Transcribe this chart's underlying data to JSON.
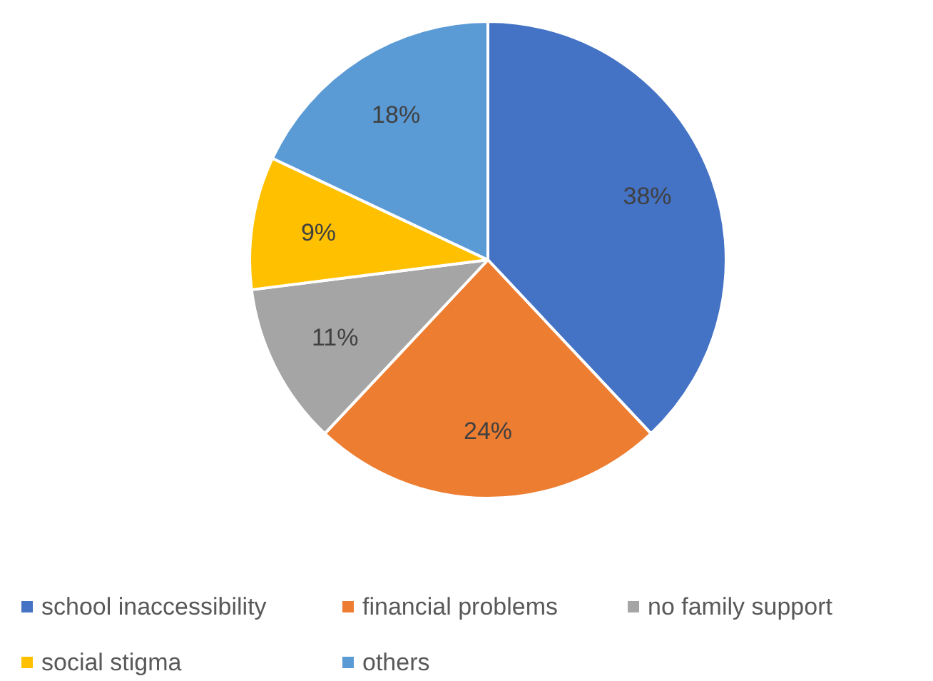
{
  "chart_data": {
    "type": "pie",
    "categories": [
      "school inaccessibility",
      "financial problems",
      "no family support",
      "social stigma",
      "others"
    ],
    "values": [
      38,
      24,
      11,
      9,
      18
    ],
    "colors": [
      "#4472c4",
      "#ed7d31",
      "#a5a5a5",
      "#ffc000",
      "#5b9bd5"
    ],
    "value_labels": [
      "38%",
      "24%",
      "11%",
      "9%",
      "18%"
    ],
    "legend": "bottom"
  }
}
